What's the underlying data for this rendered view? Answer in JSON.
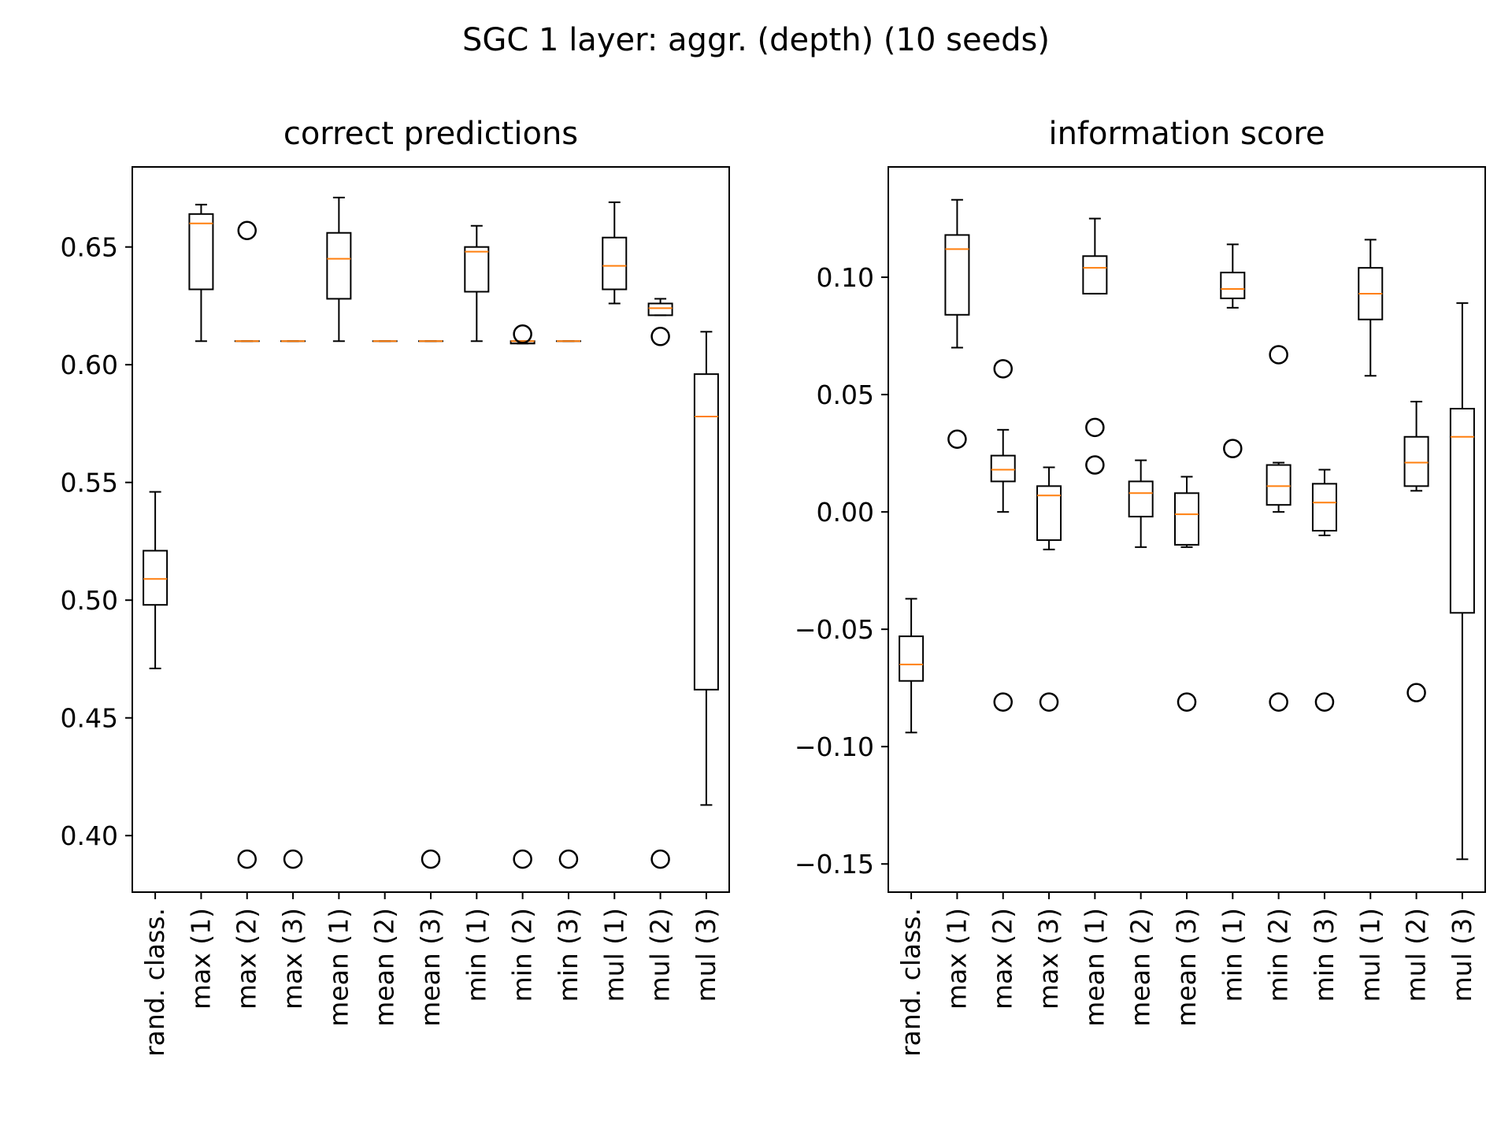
{
  "figure_title": "SGC 1 layer: aggr. (depth) (10 seeds)",
  "colors": {
    "box": "#000000",
    "median": "#ff7f0e",
    "background": "#ffffff"
  },
  "chart_data": [
    {
      "type": "box",
      "title": "correct predictions",
      "xlabel": "",
      "ylabel": "",
      "categories": [
        "rand. class.",
        "max (1)",
        "max (2)",
        "max (3)",
        "mean (1)",
        "mean (2)",
        "mean (3)",
        "min (1)",
        "min (2)",
        "min (3)",
        "mul (1)",
        "mul (2)",
        "mul (3)"
      ],
      "ylim": [
        0.376,
        0.684
      ],
      "yticks": [
        0.4,
        0.45,
        0.5,
        0.55,
        0.6,
        0.65
      ],
      "ytick_labels": [
        "0.40",
        "0.45",
        "0.50",
        "0.55",
        "0.60",
        "0.65"
      ],
      "grid": false,
      "boxes": [
        {
          "whisker_low": 0.471,
          "q1": 0.498,
          "median": 0.509,
          "q3": 0.521,
          "whisker_high": 0.546,
          "outliers": []
        },
        {
          "whisker_low": 0.61,
          "q1": 0.632,
          "median": 0.66,
          "q3": 0.664,
          "whisker_high": 0.668,
          "outliers": []
        },
        {
          "whisker_low": 0.61,
          "q1": 0.61,
          "median": 0.61,
          "q3": 0.61,
          "whisker_high": 0.61,
          "outliers": [
            0.657,
            0.39
          ]
        },
        {
          "whisker_low": 0.61,
          "q1": 0.61,
          "median": 0.61,
          "q3": 0.61,
          "whisker_high": 0.61,
          "outliers": [
            0.39
          ]
        },
        {
          "whisker_low": 0.61,
          "q1": 0.628,
          "median": 0.645,
          "q3": 0.656,
          "whisker_high": 0.671,
          "outliers": []
        },
        {
          "whisker_low": 0.61,
          "q1": 0.61,
          "median": 0.61,
          "q3": 0.61,
          "whisker_high": 0.61,
          "outliers": []
        },
        {
          "whisker_low": 0.61,
          "q1": 0.61,
          "median": 0.61,
          "q3": 0.61,
          "whisker_high": 0.61,
          "outliers": [
            0.39
          ]
        },
        {
          "whisker_low": 0.61,
          "q1": 0.631,
          "median": 0.648,
          "q3": 0.65,
          "whisker_high": 0.659,
          "outliers": []
        },
        {
          "whisker_low": 0.609,
          "q1": 0.609,
          "median": 0.61,
          "q3": 0.61,
          "whisker_high": 0.61,
          "outliers": [
            0.613,
            0.39
          ]
        },
        {
          "whisker_low": 0.61,
          "q1": 0.61,
          "median": 0.61,
          "q3": 0.61,
          "whisker_high": 0.61,
          "outliers": [
            0.39
          ]
        },
        {
          "whisker_low": 0.626,
          "q1": 0.632,
          "median": 0.642,
          "q3": 0.654,
          "whisker_high": 0.669,
          "outliers": []
        },
        {
          "whisker_low": 0.621,
          "q1": 0.621,
          "median": 0.624,
          "q3": 0.626,
          "whisker_high": 0.628,
          "outliers": [
            0.612,
            0.39
          ]
        },
        {
          "whisker_low": 0.413,
          "q1": 0.462,
          "median": 0.578,
          "q3": 0.596,
          "whisker_high": 0.614,
          "outliers": []
        }
      ]
    },
    {
      "type": "box",
      "title": "information score",
      "xlabel": "",
      "ylabel": "",
      "categories": [
        "rand. class.",
        "max (1)",
        "max (2)",
        "max (3)",
        "mean (1)",
        "mean (2)",
        "mean (3)",
        "min (1)",
        "min (2)",
        "min (3)",
        "mul (1)",
        "mul (2)",
        "mul (3)"
      ],
      "ylim": [
        -0.162,
        0.147
      ],
      "yticks": [
        -0.15,
        -0.1,
        -0.05,
        0.0,
        0.05,
        0.1
      ],
      "ytick_labels": [
        "−0.15",
        "−0.10",
        "−0.05",
        "0.00",
        "0.05",
        "0.10"
      ],
      "grid": false,
      "boxes": [
        {
          "whisker_low": -0.094,
          "q1": -0.072,
          "median": -0.065,
          "q3": -0.053,
          "whisker_high": -0.037,
          "outliers": []
        },
        {
          "whisker_low": 0.07,
          "q1": 0.084,
          "median": 0.112,
          "q3": 0.118,
          "whisker_high": 0.133,
          "outliers": [
            0.031
          ]
        },
        {
          "whisker_low": 0.0,
          "q1": 0.013,
          "median": 0.018,
          "q3": 0.024,
          "whisker_high": 0.035,
          "outliers": [
            0.061,
            -0.081
          ]
        },
        {
          "whisker_low": -0.016,
          "q1": -0.012,
          "median": 0.007,
          "q3": 0.011,
          "whisker_high": 0.019,
          "outliers": [
            -0.081
          ]
        },
        {
          "whisker_low": 0.093,
          "q1": 0.093,
          "median": 0.104,
          "q3": 0.109,
          "whisker_high": 0.125,
          "outliers": [
            0.036,
            0.02
          ]
        },
        {
          "whisker_low": -0.015,
          "q1": -0.002,
          "median": 0.008,
          "q3": 0.013,
          "whisker_high": 0.022,
          "outliers": []
        },
        {
          "whisker_low": -0.015,
          "q1": -0.014,
          "median": -0.001,
          "q3": 0.008,
          "whisker_high": 0.015,
          "outliers": [
            -0.081
          ]
        },
        {
          "whisker_low": 0.087,
          "q1": 0.091,
          "median": 0.095,
          "q3": 0.102,
          "whisker_high": 0.114,
          "outliers": [
            0.027
          ]
        },
        {
          "whisker_low": 0.0,
          "q1": 0.003,
          "median": 0.011,
          "q3": 0.02,
          "whisker_high": 0.021,
          "outliers": [
            0.067,
            -0.081
          ]
        },
        {
          "whisker_low": -0.01,
          "q1": -0.008,
          "median": 0.004,
          "q3": 0.012,
          "whisker_high": 0.018,
          "outliers": [
            -0.081
          ]
        },
        {
          "whisker_low": 0.058,
          "q1": 0.082,
          "median": 0.093,
          "q3": 0.104,
          "whisker_high": 0.116,
          "outliers": []
        },
        {
          "whisker_low": 0.009,
          "q1": 0.011,
          "median": 0.021,
          "q3": 0.032,
          "whisker_high": 0.047,
          "outliers": [
            -0.077
          ]
        },
        {
          "whisker_low": -0.148,
          "q1": -0.043,
          "median": 0.032,
          "q3": 0.044,
          "whisker_high": 0.089,
          "outliers": []
        }
      ]
    }
  ]
}
